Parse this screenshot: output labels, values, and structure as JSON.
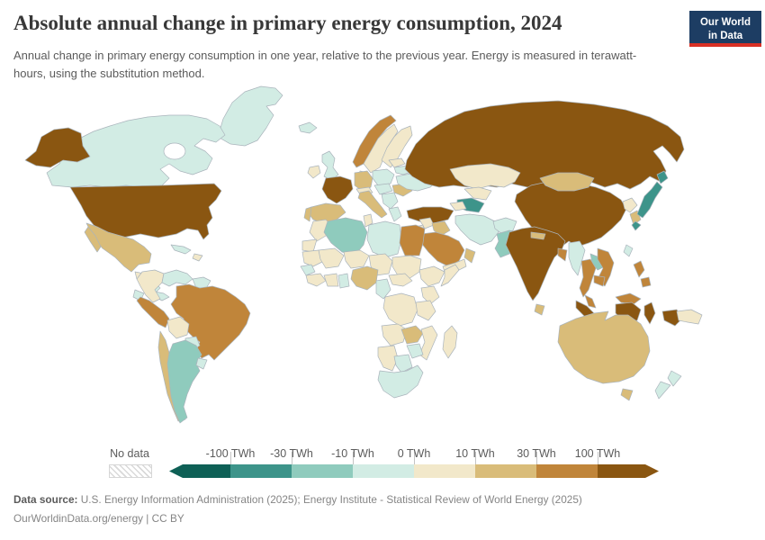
{
  "header": {
    "title": "Absolute annual change in primary energy consumption, 2024",
    "subtitle": "Annual change in primary energy consumption in one year, relative to the previous year. Energy is measured in terawatt-hours, using the substitution method.",
    "logo": {
      "line1": "Our World",
      "line2": "in Data",
      "bg_color": "#1d3d63",
      "accent_color": "#d93025"
    }
  },
  "chart_data": {
    "type": "heatmap",
    "subtype": "world-choropleth",
    "title": "Absolute annual change in primary energy consumption, 2024",
    "unit": "TWh",
    "legend": {
      "position": "bottom",
      "no_data_label": "No data",
      "tick_labels": [
        "-100 TWh",
        "-30 TWh",
        "-10 TWh",
        "0 TWh",
        "10 TWh",
        "30 TWh",
        "100 TWh"
      ],
      "bins": [
        {
          "range": "below -100",
          "color": "#0e6056"
        },
        {
          "range": "-100 to -30",
          "color": "#3d948a"
        },
        {
          "range": "-30 to -10",
          "color": "#8fcbbd"
        },
        {
          "range": "-10 to 0",
          "color": "#d2ece4"
        },
        {
          "range": "0 to 10",
          "color": "#f2e8ca"
        },
        {
          "range": "10 to 30",
          "color": "#d9bc79"
        },
        {
          "range": "30 to 100",
          "color": "#c0853a"
        },
        {
          "range": "above 100",
          "color": "#8a5611"
        }
      ]
    },
    "countries": {
      "usa": 7,
      "russia": 7,
      "china": 7,
      "india": 7,
      "france": 7,
      "turkey": 7,
      "indonesia": 7,
      "brazil": 6,
      "peru": 6,
      "norway": 6,
      "egypt": 6,
      "saudi-arabia": 6,
      "thailand": 6,
      "vietnam": 6,
      "cambodia": 6,
      "malaysia": 6,
      "bangladesh": 6,
      "philippines": 6,
      "mexico": 5,
      "chile": 5,
      "spain": 5,
      "portugal": 5,
      "germany": 5,
      "italy": 5,
      "romania": 5,
      "mongolia": 5,
      "south-korea": 5,
      "sri-lanka": 5,
      "nepal": 5,
      "iraq": 5,
      "oman": 5,
      "nigeria": 5,
      "zambia": 5,
      "australia": 5,
      "colombia": 4,
      "bolivia": 4,
      "sweden": 4,
      "finland": 4,
      "denmark": 4,
      "ireland": 4,
      "baltics": 4,
      "alpine-europe": 4,
      "kazakhstan": 4,
      "uzbekistan": 4,
      "syria": 4,
      "jordan-israel": 4,
      "yemen": 4,
      "caucasus": 4,
      "papua-new-guinea": 4,
      "north-korea": 4,
      "morocco": 4,
      "western-sahara": 4,
      "tunisia": 4,
      "mauritania": 4,
      "mali": 4,
      "niger": 4,
      "chad": 4,
      "sudan": 4,
      "ethiopia": 4,
      "somalia": 4,
      "kenya": 4,
      "drc": 4,
      "tanzania": 4,
      "angola": 4,
      "mozambique": 4,
      "namibia": 4,
      "madagascar": 4,
      "guinea": 4,
      "ivory-coast": 4,
      "central-african-republic": 4,
      "hispaniola": 4,
      "guatemala": 4,
      "canada": 3,
      "greenland": 3,
      "uk": 3,
      "iceland": 3,
      "ukraine": 3,
      "belarus": 3,
      "poland": 3,
      "central-europe": 3,
      "balkans": 3,
      "greece": 3,
      "iran": 3,
      "afghanistan": 3,
      "myanmar": 3,
      "venezuela": 3,
      "ecuador": 3,
      "paraguay": 3,
      "uruguay": 3,
      "new-zealand": 3,
      "south-africa": 3,
      "zimbabwe": 3,
      "botswana": 3,
      "ghana": 3,
      "cameroon": 3,
      "senegal": 3,
      "libya": 3,
      "guyanas": 3,
      "cuba": 3,
      "nicaragua": 3,
      "panama": 3,
      "taiwan": 3,
      "argentina": 2,
      "algeria": 2,
      "pakistan": 2,
      "laos": 2,
      "japan": 1,
      "turkmenistan": 1
    }
  },
  "footer": {
    "source_label": "Data source:",
    "source_text": " U.S. Energy Information Administration (2025); Energy Institute - Statistical Review of World Energy (2025)",
    "license_text": "OurWorldinData.org/energy | CC BY"
  }
}
